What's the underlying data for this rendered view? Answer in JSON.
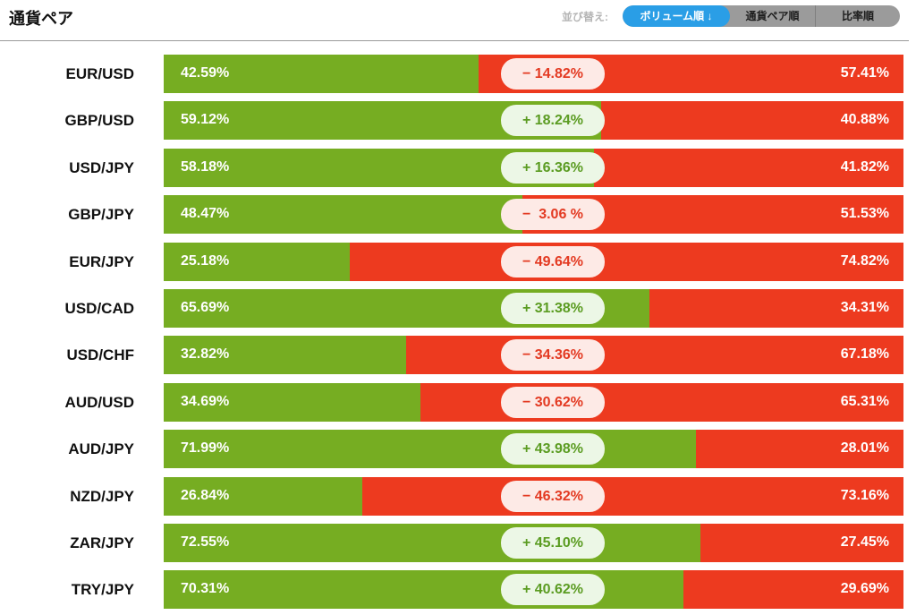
{
  "header": {
    "title": "通貨ペア",
    "sort_label": "並び替え:",
    "sort_buttons": [
      {
        "label": "ボリューム順 ↓",
        "active": true
      },
      {
        "label": "通貨ペア順",
        "active": false
      },
      {
        "label": "比率順",
        "active": false
      }
    ]
  },
  "colors": {
    "buy": "#76ad22",
    "sell": "#ed3a1f",
    "accent": "#2a9ee6"
  },
  "rows": [
    {
      "pair": "EUR/USD",
      "buy": "42.59%",
      "sell": "57.41%",
      "diff": "− 14.82%",
      "buy_fraction": 0.4259,
      "sign": "neg"
    },
    {
      "pair": "GBP/USD",
      "buy": "59.12%",
      "sell": "40.88%",
      "diff": "+ 18.24%",
      "buy_fraction": 0.5912,
      "sign": "pos"
    },
    {
      "pair": "USD/JPY",
      "buy": "58.18%",
      "sell": "41.82%",
      "diff": "+ 16.36%",
      "buy_fraction": 0.5818,
      "sign": "pos"
    },
    {
      "pair": "GBP/JPY",
      "buy": "48.47%",
      "sell": "51.53%",
      "diff": "−  3.06 %",
      "buy_fraction": 0.4847,
      "sign": "neg"
    },
    {
      "pair": "EUR/JPY",
      "buy": "25.18%",
      "sell": "74.82%",
      "diff": "− 49.64%",
      "buy_fraction": 0.2518,
      "sign": "neg"
    },
    {
      "pair": "USD/CAD",
      "buy": "65.69%",
      "sell": "34.31%",
      "diff": "+ 31.38%",
      "buy_fraction": 0.6569,
      "sign": "pos"
    },
    {
      "pair": "USD/CHF",
      "buy": "32.82%",
      "sell": "67.18%",
      "diff": "− 34.36%",
      "buy_fraction": 0.3282,
      "sign": "neg"
    },
    {
      "pair": "AUD/USD",
      "buy": "34.69%",
      "sell": "65.31%",
      "diff": "− 30.62%",
      "buy_fraction": 0.3469,
      "sign": "neg"
    },
    {
      "pair": "AUD/JPY",
      "buy": "71.99%",
      "sell": "28.01%",
      "diff": "+ 43.98%",
      "buy_fraction": 0.7199,
      "sign": "pos"
    },
    {
      "pair": "NZD/JPY",
      "buy": "26.84%",
      "sell": "73.16%",
      "diff": "− 46.32%",
      "buy_fraction": 0.2684,
      "sign": "neg"
    },
    {
      "pair": "ZAR/JPY",
      "buy": "72.55%",
      "sell": "27.45%",
      "diff": "+ 45.10%",
      "buy_fraction": 0.7255,
      "sign": "pos"
    },
    {
      "pair": "TRY/JPY",
      "buy": "70.31%",
      "sell": "29.69%",
      "diff": "+ 40.62%",
      "buy_fraction": 0.7031,
      "sign": "pos"
    }
  ]
}
